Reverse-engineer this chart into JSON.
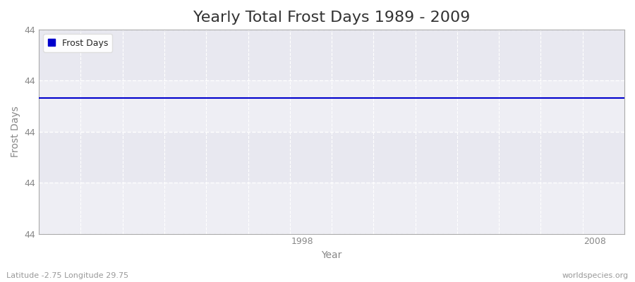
{
  "title": "Yearly Total Frost Days 1989 - 2009",
  "xlabel": "Year",
  "ylabel": "Frost Days",
  "years": [
    1989,
    1990,
    1991,
    1992,
    1993,
    1994,
    1995,
    1996,
    1997,
    1998,
    1999,
    2000,
    2001,
    2002,
    2003,
    2004,
    2005,
    2006,
    2007,
    2008,
    2009
  ],
  "values": [
    44,
    44,
    44,
    44,
    44,
    44,
    44,
    44,
    44,
    44,
    44,
    44,
    44,
    44,
    44,
    44,
    44,
    44,
    44,
    44,
    44
  ],
  "line_color": "#0000cc",
  "legend_label": "Frost Days",
  "xlim_min": 1989,
  "xlim_max": 2009,
  "xtick_labels": [
    "1998",
    "2008"
  ],
  "xtick_positions": [
    1998,
    2008
  ],
  "bg_color": "#f0f0f5",
  "bg_color_band1": "#ececf2",
  "bg_color_band2": "#e4e4ec",
  "grid_color": "#ffffff",
  "spine_color": "#aaaaaa",
  "tick_color": "#888888",
  "subtitle_left": "Latitude -2.75 Longitude 29.75",
  "subtitle_right": "worldspecies.org",
  "title_fontsize": 16,
  "label_fontsize": 10,
  "tick_fontsize": 9,
  "num_yticks": 5,
  "y_value": 44,
  "ylim_min": 43.2,
  "ylim_max": 44.4
}
